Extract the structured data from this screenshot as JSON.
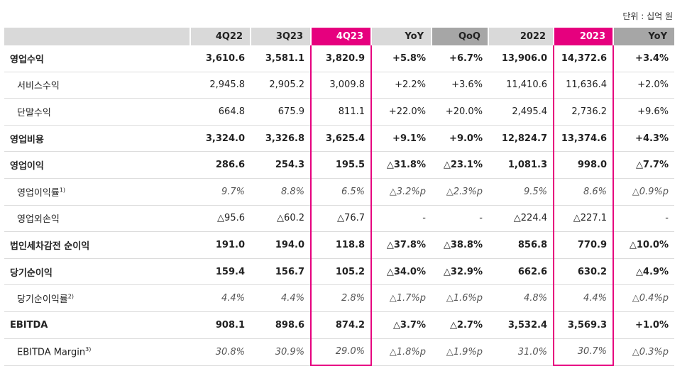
{
  "unit_label": "단위 : 십억 원",
  "headers": [
    "",
    "4Q22",
    "3Q23",
    "4Q23",
    "YoY",
    "QoQ",
    "2022",
    "2023",
    "YoY"
  ],
  "rows": [
    {
      "label": "영업수익",
      "sup": "",
      "v": [
        "3,610.6",
        "3,581.1",
        "3,820.9",
        "+5.8%",
        "+6.7%",
        "13,906.0",
        "14,372.6",
        "+3.4%"
      ]
    },
    {
      "label": "서비스수익",
      "sup": "",
      "v": [
        "2,945.8",
        "2,905.2",
        "3,009.8",
        "+2.2%",
        "+3.6%",
        "11,410.6",
        "11,636.4",
        "+2.0%"
      ]
    },
    {
      "label": "단말수익",
      "sup": "",
      "v": [
        "664.8",
        "675.9",
        "811.1",
        "+22.0%",
        "+20.0%",
        "2,495.4",
        "2,736.2",
        "+9.6%"
      ]
    },
    {
      "label": "영업비용",
      "sup": "",
      "v": [
        "3,324.0",
        "3,326.8",
        "3,625.4",
        "+9.1%",
        "+9.0%",
        "12,824.7",
        "13,374.6",
        "+4.3%"
      ]
    },
    {
      "label": "영업이익",
      "sup": "",
      "v": [
        "286.6",
        "254.3",
        "195.5",
        "△31.8%",
        "△23.1%",
        "1,081.3",
        "998.0",
        "△7.7%"
      ]
    },
    {
      "label": "영업이익률",
      "sup": "1)",
      "v": [
        "9.7%",
        "8.8%",
        "6.5%",
        "△3.2%p",
        "△2.3%p",
        "9.5%",
        "8.6%",
        "△0.9%p"
      ]
    },
    {
      "label": "영업외손익",
      "sup": "",
      "v": [
        "△95.6",
        "△60.2",
        "△76.7",
        "-",
        "-",
        "△224.4",
        "△227.1",
        "-"
      ]
    },
    {
      "label": "법인세차감전 순이익",
      "sup": "",
      "v": [
        "191.0",
        "194.0",
        "118.8",
        "△37.8%",
        "△38.8%",
        "856.8",
        "770.9",
        "△10.0%"
      ]
    },
    {
      "label": "당기순이익",
      "sup": "",
      "v": [
        "159.4",
        "156.7",
        "105.2",
        "△34.0%",
        "△32.9%",
        "662.6",
        "630.2",
        "△4.9%"
      ]
    },
    {
      "label": "당기순이익률",
      "sup": "2)",
      "v": [
        "4.4%",
        "4.4%",
        "2.8%",
        "△1.7%p",
        "△1.6%p",
        "4.8%",
        "4.4%",
        "△0.4%p"
      ]
    },
    {
      "label": "EBITDA",
      "sup": "",
      "v": [
        "908.1",
        "898.6",
        "874.2",
        "△3.7%",
        "△2.7%",
        "3,532.4",
        "3,569.3",
        "+1.0%"
      ]
    },
    {
      "label": "EBITDA Margin",
      "sup": "3)",
      "v": [
        "30.8%",
        "30.9%",
        "29.0%",
        "△1.8%p",
        "△1.9%p",
        "31.0%",
        "30.7%",
        "△0.3%p"
      ]
    }
  ],
  "colors": {
    "highlight": "#e6007e",
    "header_bg": "#d9d9d9",
    "header_dark": "#a6a6a6"
  }
}
